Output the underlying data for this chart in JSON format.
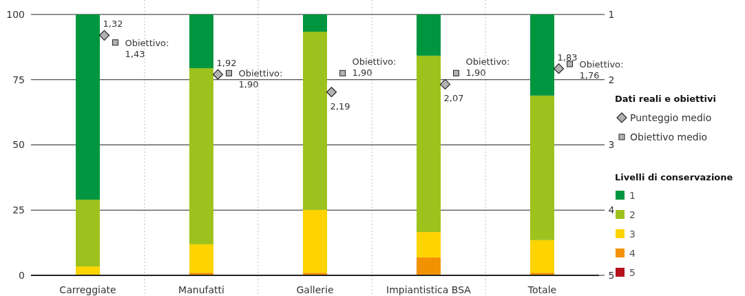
{
  "chart_data": {
    "type": "bar",
    "stacked": true,
    "categories": [
      "Carreggiate",
      "Manufatti",
      "Gallerie",
      "Impiantistica BSA",
      "Totale"
    ],
    "series": [
      {
        "name": "5",
        "color": "#b5121b",
        "values": [
          0,
          0,
          0,
          0,
          0
        ]
      },
      {
        "name": "4",
        "color": "#f39200",
        "values": [
          0,
          1.0,
          1.0,
          6.9,
          1.0
        ]
      },
      {
        "name": "3",
        "color": "#fdd300",
        "values": [
          3.4,
          10.9,
          24.1,
          9.7,
          12.5
        ]
      },
      {
        "name": "2",
        "color": "#9dc21d",
        "values": [
          25.6,
          67.5,
          68.3,
          67.6,
          55.4
        ]
      },
      {
        "name": "1",
        "color": "#009640",
        "values": [
          71,
          20.6,
          6.6,
          15.8,
          31.1
        ]
      },
      {
        "name": "Punteggio medio",
        "type": "scatter",
        "axis": "y2",
        "marker": "diamond",
        "color": "#b2b2b2",
        "x": [
          "Carreggiate",
          "Manufatti",
          "Gallerie",
          "Impiantistica BSA",
          "Totale"
        ],
        "values": [
          1.32,
          1.92,
          2.19,
          2.07,
          1.83
        ],
        "value_labels": [
          "1,32",
          "1,92",
          "2,19",
          "2,07",
          "1,83"
        ]
      },
      {
        "name": "Obiettivo medio",
        "type": "scatter",
        "axis": "y2",
        "marker": "square",
        "color": "#b2b2b2",
        "x": [
          "Carreggiate",
          "Manufatti",
          "Gallerie",
          "Impiantistica BSA",
          "Totale"
        ],
        "values": [
          1.43,
          1.9,
          1.9,
          1.9,
          1.76
        ],
        "value_labels": [
          "Obiettivo:\n1,43",
          "Obiettivo:\n1,90",
          "Obiettivo:\n1,90",
          "Obiettivo:\n1,90",
          "Obiettivo:\n1,76"
        ]
      }
    ],
    "ylim": [
      0,
      100
    ],
    "yticks": [
      0,
      25,
      50,
      75,
      100
    ],
    "y2lim": [
      5,
      1
    ],
    "y2ticks": [
      1,
      2,
      3,
      4,
      5
    ],
    "grid": "y",
    "legend": "right",
    "legend_title": "Livelli di conservazione",
    "annotations": [
      "Dati reali e obiettivi"
    ]
  }
}
